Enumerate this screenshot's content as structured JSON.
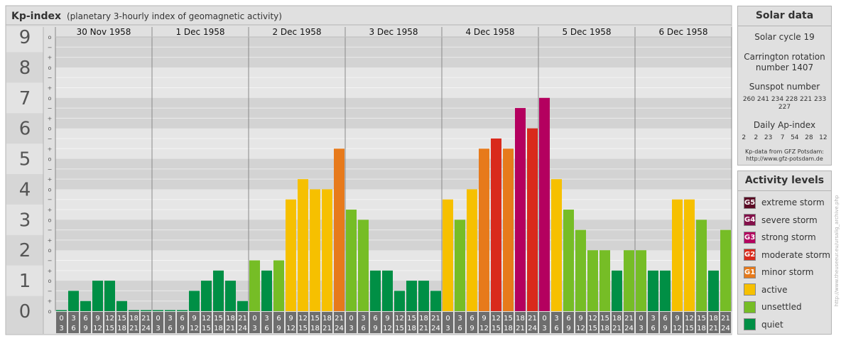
{
  "header": {
    "title": "Kp-index",
    "subtitle": "(planetary 3-hourly index of geomagnetic activity)"
  },
  "chart_data": {
    "type": "bar",
    "title": "Kp-index",
    "subtitle": "(planetary 3-hourly index of geomagnetic activity)",
    "ylim": [
      0,
      9
    ],
    "y_ticks": [
      "0",
      "1",
      "2",
      "3",
      "4",
      "5",
      "6",
      "7",
      "8",
      "9"
    ],
    "minor_ticks": [
      "o",
      "+",
      "−"
    ],
    "days": [
      "30 Nov 1958",
      "1 Dec 1958",
      "2 Dec 1958",
      "3 Dec 1958",
      "4 Dec 1958",
      "5 Dec 1958",
      "6 Dec 1958"
    ],
    "intervals": [
      [
        "0",
        "3"
      ],
      [
        "3",
        "6"
      ],
      [
        "6",
        "9"
      ],
      [
        "9",
        "12"
      ],
      [
        "12",
        "15"
      ],
      [
        "15",
        "18"
      ],
      [
        "18",
        "21"
      ],
      [
        "21",
        "24"
      ]
    ],
    "values": [
      [
        0.0,
        0.667,
        0.333,
        1.0,
        1.0,
        0.333,
        0.0,
        0.0
      ],
      [
        0.0,
        0.0,
        0.0,
        0.667,
        1.0,
        1.333,
        1.0,
        0.333
      ],
      [
        1.667,
        1.333,
        1.667,
        3.667,
        4.333,
        4.0,
        4.0,
        5.333
      ],
      [
        3.333,
        3.0,
        1.333,
        1.333,
        0.667,
        1.0,
        1.0,
        0.667
      ],
      [
        3.667,
        3.0,
        4.0,
        5.333,
        5.667,
        5.333,
        6.667,
        6.0
      ],
      [
        7.0,
        4.333,
        3.333,
        2.667,
        2.0,
        2.0,
        1.333,
        2.0
      ],
      [
        2.0,
        1.333,
        1.333,
        3.667,
        3.667,
        3.0,
        1.333,
        2.667
      ]
    ],
    "grid": true
  },
  "solar_data": {
    "title": "Solar data",
    "solar_cycle": "Solar cycle 19",
    "carrington_line1": "Carrington rotation",
    "carrington_line2": "number 1407",
    "sunspot_label": "Sunspot number",
    "sunspot_values": "260 241 234 228 221 233 227",
    "ap_label": "Daily Ap-index",
    "ap_values": "2    2   23    7   54   28   12",
    "source_line1": "Kp-data from GFZ Potsdam:",
    "source_line2": "http://www.gfz-potsdam.de"
  },
  "activity_levels": {
    "title": "Activity levels",
    "items": [
      {
        "badge": "G5",
        "label": "extreme storm",
        "color": "#5b0a24"
      },
      {
        "badge": "G4",
        "label": "severe storm",
        "color": "#84104a"
      },
      {
        "badge": "G3",
        "label": "strong storm",
        "color": "#b4005f"
      },
      {
        "badge": "G2",
        "label": "moderate storm",
        "color": "#d92a1c"
      },
      {
        "badge": "G1",
        "label": "minor storm",
        "color": "#e77a1b"
      },
      {
        "badge": "",
        "label": "active",
        "color": "#f6c000"
      },
      {
        "badge": "",
        "label": "unsettled",
        "color": "#76bd26"
      },
      {
        "badge": "",
        "label": "quiet",
        "color": "#008f45"
      }
    ]
  },
  "side_credit": "http://www.theuseeur.eu/ursalig_archive.php"
}
